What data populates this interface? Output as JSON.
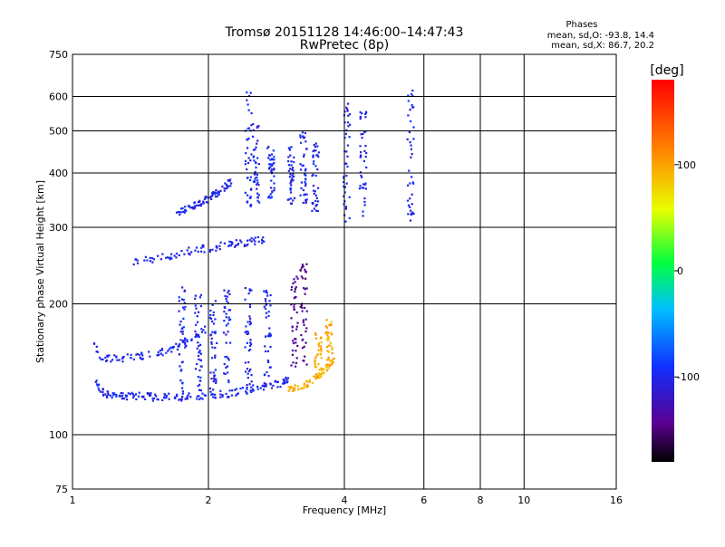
{
  "chart_data": {
    "type": "scatter",
    "title": "Tromsø 20151128 14:46:00–14:47:43",
    "subtitle": "RwPretec (8p)",
    "xlabel": "Frequency [MHz]",
    "ylabel": "Stationary phase Virtual Height [km]",
    "xscale": "log",
    "yscale": "log",
    "xlim": [
      1,
      16
    ],
    "ylim": [
      75,
      750
    ],
    "x_ticks": [
      1,
      2,
      4,
      6,
      8,
      10,
      16
    ],
    "y_ticks": [
      75,
      100,
      200,
      300,
      400,
      500,
      600,
      750
    ],
    "grid_x": [
      2,
      4,
      6,
      8,
      10
    ],
    "grid_y": [
      100,
      200,
      300,
      400,
      500,
      600
    ],
    "grid": true,
    "phase_stats": {
      "heading": "Phases",
      "line_o": "mean, sd,O: -93.8, 14.4",
      "line_x": "mean, sd,X:  86.7, 20.2"
    },
    "colorbar": {
      "label": "[deg]",
      "range": [
        -180,
        180
      ],
      "ticks": [
        100,
        0,
        -100
      ]
    },
    "series": [
      {
        "name": "O",
        "type": "trace",
        "phase": -100,
        "x": [
          1.12,
          1.15,
          1.18,
          1.22,
          1.26,
          1.3,
          1.35,
          1.4,
          1.45,
          1.5,
          1.56,
          1.62,
          1.7,
          1.78,
          1.86,
          1.95,
          2.05,
          2.15,
          2.25,
          2.35,
          2.45,
          2.55,
          2.65,
          2.75,
          2.85,
          2.95,
          3.05
        ],
        "y": [
          133,
          127,
          124,
          123,
          123,
          123,
          123,
          123,
          123,
          122,
          122,
          122,
          122,
          122,
          123,
          123,
          124,
          124,
          125,
          126,
          127,
          128,
          129,
          130,
          131,
          133,
          135
        ]
      },
      {
        "name": "O",
        "type": "trace",
        "phase": -100,
        "x": [
          1.12,
          1.16,
          1.22,
          1.28,
          1.35,
          1.42,
          1.5,
          1.58,
          1.66,
          1.74,
          1.82,
          1.9,
          2.0
        ],
        "y": [
          160,
          150,
          150,
          150,
          151,
          152,
          153,
          155,
          158,
          161,
          165,
          170,
          177
        ]
      },
      {
        "name": "O",
        "type": "trace",
        "phase": -100,
        "x": [
          1.35,
          1.45,
          1.55,
          1.65,
          1.75,
          1.85,
          1.95,
          2.05,
          2.15,
          2.25,
          2.35,
          2.45,
          2.55,
          2.65
        ],
        "y": [
          250,
          252,
          255,
          258,
          262,
          266,
          268,
          270,
          272,
          274,
          276,
          278,
          280,
          282
        ]
      },
      {
        "name": "O",
        "type": "trace",
        "phase": -100,
        "x": [
          1.7,
          1.75,
          1.8,
          1.85,
          1.9,
          1.95,
          2.0,
          2.05,
          2.1,
          2.15,
          2.2,
          2.25
        ],
        "y": [
          325,
          328,
          332,
          336,
          340,
          345,
          350,
          356,
          362,
          368,
          375,
          385
        ]
      },
      {
        "name": "O",
        "type": "vertical",
        "phase": -100,
        "x": 1.75,
        "ylow": 125,
        "yhigh": 225
      },
      {
        "name": "O",
        "type": "vertical",
        "phase": -100,
        "x": 1.9,
        "ylow": 125,
        "yhigh": 210
      },
      {
        "name": "O",
        "type": "vertical",
        "phase": -100,
        "x": 2.05,
        "ylow": 127,
        "yhigh": 205
      },
      {
        "name": "O",
        "type": "vertical",
        "phase": -100,
        "x": 2.2,
        "ylow": 128,
        "yhigh": 215
      },
      {
        "name": "O",
        "type": "vertical",
        "phase": -100,
        "x": 2.45,
        "ylow": 130,
        "yhigh": 220
      },
      {
        "name": "O",
        "type": "vertical",
        "phase": -100,
        "x": 2.7,
        "ylow": 132,
        "yhigh": 215
      },
      {
        "name": "O",
        "type": "vertical",
        "phase": -100,
        "x": 2.45,
        "ylow": 330,
        "yhigh": 640
      },
      {
        "name": "O",
        "type": "vertical",
        "phase": -100,
        "x": 2.55,
        "ylow": 340,
        "yhigh": 520
      },
      {
        "name": "O",
        "type": "vertical",
        "phase": -100,
        "x": 2.75,
        "ylow": 350,
        "yhigh": 460
      },
      {
        "name": "O",
        "type": "vertical",
        "phase": -100,
        "x": 3.05,
        "ylow": 340,
        "yhigh": 460
      },
      {
        "name": "O",
        "type": "vertical",
        "phase": -100,
        "x": 3.25,
        "ylow": 340,
        "yhigh": 500
      },
      {
        "name": "O",
        "type": "vertical",
        "phase": -100,
        "x": 3.45,
        "ylow": 320,
        "yhigh": 470
      },
      {
        "name": "O",
        "type": "vertical",
        "phase": -100,
        "x": 4.05,
        "ylow": 300,
        "yhigh": 580
      },
      {
        "name": "O",
        "type": "vertical",
        "phase": -100,
        "x": 4.4,
        "ylow": 310,
        "yhigh": 560
      },
      {
        "name": "O",
        "type": "vertical",
        "phase": -100,
        "x": 5.6,
        "ylow": 310,
        "yhigh": 620
      },
      {
        "name": "O-dark",
        "type": "vertical",
        "phase": -140,
        "x": 3.1,
        "ylow": 140,
        "yhigh": 240
      },
      {
        "name": "O-dark",
        "type": "vertical",
        "phase": -140,
        "x": 3.25,
        "ylow": 145,
        "yhigh": 250
      },
      {
        "name": "X",
        "type": "trace",
        "phase": 95,
        "x": [
          3.0,
          3.1,
          3.2,
          3.3,
          3.4,
          3.5,
          3.6,
          3.7,
          3.8
        ],
        "y": [
          127,
          128,
          129,
          131,
          134,
          137,
          140,
          145,
          150
        ]
      },
      {
        "name": "X",
        "type": "vertical",
        "phase": 95,
        "x": 3.5,
        "ylow": 135,
        "yhigh": 175
      },
      {
        "name": "X",
        "type": "vertical",
        "phase": 95,
        "x": 3.7,
        "ylow": 140,
        "yhigh": 185
      }
    ]
  }
}
